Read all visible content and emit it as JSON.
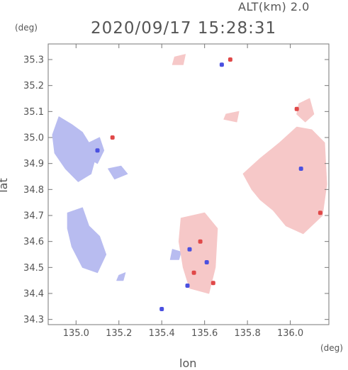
{
  "header": {
    "altitude_label": "ALT(km) 2.0",
    "timestamp": "2020/09/17 15:28:31",
    "y_unit": "(deg)",
    "x_unit": "(deg)"
  },
  "chart_data": {
    "type": "heatmap",
    "title": "2020/09/17 15:28:31",
    "subtitle": "ALT(km) 2.0",
    "xlabel": "lon",
    "ylabel": "lat",
    "x_unit": "(deg)",
    "y_unit": "(deg)",
    "xlim": [
      134.87,
      136.18
    ],
    "ylim": [
      34.28,
      35.36
    ],
    "x_ticks": [
      135.0,
      135.2,
      135.4,
      135.6,
      135.8,
      136.0
    ],
    "x_tick_labels": [
      "135.0",
      "135.2",
      "135.4",
      "135.6",
      "135.8",
      "136.0"
    ],
    "y_ticks": [
      34.3,
      34.4,
      34.5,
      34.6,
      34.7,
      34.8,
      34.9,
      35.0,
      35.1,
      35.2,
      35.3
    ],
    "y_tick_labels": [
      "34.3",
      "34.4",
      "34.5",
      "34.6",
      "34.7",
      "34.8",
      "34.9",
      "35.0",
      "35.1",
      "35.2",
      "35.3"
    ],
    "colors": {
      "approaching": "#b8bcf0",
      "receding": "#f6c8c8",
      "strong_approaching": "#4a50e0",
      "strong_receding": "#e04848"
    },
    "regions": [
      {
        "type": "approaching",
        "points": [
          [
            134.89,
            35.01
          ],
          [
            134.92,
            35.08
          ],
          [
            134.98,
            35.05
          ],
          [
            135.03,
            35.02
          ],
          [
            135.06,
            34.98
          ],
          [
            135.09,
            34.92
          ],
          [
            135.07,
            34.86
          ],
          [
            135.01,
            34.83
          ],
          [
            134.95,
            34.88
          ],
          [
            134.9,
            34.94
          ]
        ]
      },
      {
        "type": "approaching",
        "points": [
          [
            135.06,
            34.98
          ],
          [
            135.11,
            35.0
          ],
          [
            135.13,
            34.95
          ],
          [
            135.1,
            34.9
          ],
          [
            135.06,
            34.92
          ]
        ]
      },
      {
        "type": "approaching",
        "points": [
          [
            134.96,
            34.71
          ],
          [
            135.03,
            34.73
          ],
          [
            135.06,
            34.66
          ],
          [
            135.11,
            34.62
          ],
          [
            135.14,
            34.55
          ],
          [
            135.1,
            34.48
          ],
          [
            135.03,
            34.5
          ],
          [
            134.98,
            34.58
          ],
          [
            134.96,
            34.65
          ]
        ]
      },
      {
        "type": "approaching",
        "points": [
          [
            135.15,
            34.88
          ],
          [
            135.21,
            34.89
          ],
          [
            135.24,
            34.86
          ],
          [
            135.18,
            34.84
          ]
        ]
      },
      {
        "type": "approaching",
        "points": [
          [
            135.45,
            34.57
          ],
          [
            135.49,
            34.56
          ],
          [
            135.48,
            34.53
          ],
          [
            135.44,
            34.53
          ]
        ]
      },
      {
        "type": "approaching",
        "points": [
          [
            135.2,
            34.47
          ],
          [
            135.23,
            34.48
          ],
          [
            135.22,
            34.45
          ],
          [
            135.19,
            34.45
          ]
        ]
      },
      {
        "type": "receding",
        "points": [
          [
            135.78,
            34.86
          ],
          [
            135.86,
            34.92
          ],
          [
            135.95,
            34.98
          ],
          [
            136.03,
            35.04
          ],
          [
            136.1,
            35.03
          ],
          [
            136.16,
            34.98
          ],
          [
            136.17,
            34.82
          ],
          [
            136.15,
            34.7
          ],
          [
            136.06,
            34.63
          ],
          [
            135.98,
            34.66
          ],
          [
            135.92,
            34.72
          ],
          [
            135.86,
            34.76
          ],
          [
            135.82,
            34.8
          ]
        ]
      },
      {
        "type": "receding",
        "points": [
          [
            136.04,
            35.13
          ],
          [
            136.09,
            35.15
          ],
          [
            136.11,
            35.09
          ],
          [
            136.07,
            35.06
          ],
          [
            136.03,
            35.09
          ]
        ]
      },
      {
        "type": "receding",
        "points": [
          [
            135.7,
            35.09
          ],
          [
            135.76,
            35.1
          ],
          [
            135.75,
            35.06
          ],
          [
            135.69,
            35.07
          ]
        ]
      },
      {
        "type": "receding",
        "points": [
          [
            135.49,
            34.69
          ],
          [
            135.6,
            34.71
          ],
          [
            135.66,
            34.65
          ],
          [
            135.65,
            34.5
          ],
          [
            135.62,
            34.4
          ],
          [
            135.53,
            34.42
          ],
          [
            135.5,
            34.5
          ],
          [
            135.48,
            34.6
          ]
        ]
      },
      {
        "type": "receding",
        "points": [
          [
            135.46,
            35.31
          ],
          [
            135.51,
            35.32
          ],
          [
            135.5,
            35.28
          ],
          [
            135.45,
            35.28
          ]
        ]
      }
    ],
    "speckles": [
      {
        "type": "strong_receding",
        "lon": 135.17,
        "lat": 35.0
      },
      {
        "type": "strong_receding",
        "lon": 135.72,
        "lat": 35.3
      },
      {
        "type": "strong_approaching",
        "lon": 135.68,
        "lat": 35.28
      },
      {
        "type": "strong_approaching",
        "lon": 136.05,
        "lat": 34.88
      },
      {
        "type": "strong_receding",
        "lon": 136.14,
        "lat": 34.71
      },
      {
        "type": "strong_approaching",
        "lon": 135.53,
        "lat": 34.57
      },
      {
        "type": "strong_receding",
        "lon": 135.58,
        "lat": 34.6
      },
      {
        "type": "strong_approaching",
        "lon": 135.61,
        "lat": 34.52
      },
      {
        "type": "strong_receding",
        "lon": 135.55,
        "lat": 34.48
      },
      {
        "type": "strong_approaching",
        "lon": 135.52,
        "lat": 34.43
      },
      {
        "type": "strong_receding",
        "lon": 135.64,
        "lat": 34.44
      },
      {
        "type": "strong_approaching",
        "lon": 135.4,
        "lat": 34.34
      },
      {
        "type": "strong_approaching",
        "lon": 135.1,
        "lat": 34.95
      },
      {
        "type": "strong_receding",
        "lon": 136.03,
        "lat": 35.11
      }
    ]
  }
}
